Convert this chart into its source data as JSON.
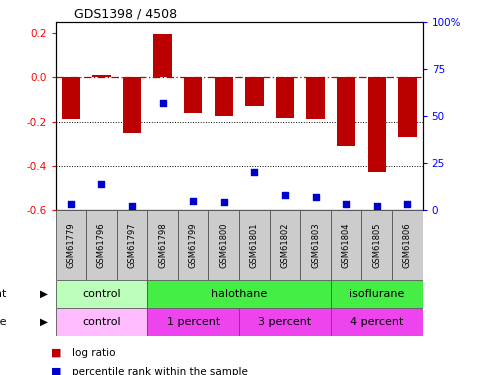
{
  "title": "GDS1398 / 4508",
  "samples": [
    "GSM61779",
    "GSM61796",
    "GSM61797",
    "GSM61798",
    "GSM61799",
    "GSM61800",
    "GSM61801",
    "GSM61802",
    "GSM61803",
    "GSM61804",
    "GSM61805",
    "GSM61806"
  ],
  "log_ratio": [
    -0.19,
    0.01,
    -0.25,
    0.195,
    -0.16,
    -0.175,
    -0.13,
    -0.185,
    -0.19,
    -0.31,
    -0.43,
    -0.27
  ],
  "percentile_rank": [
    3,
    14,
    2,
    57,
    5,
    4,
    20,
    8,
    7,
    3,
    2,
    3
  ],
  "bar_color": "#bb0000",
  "dot_color": "#0000cc",
  "ylim_left": [
    -0.6,
    0.25
  ],
  "ylim_right": [
    0,
    100
  ],
  "y_ticks_left": [
    -0.6,
    -0.4,
    -0.2,
    0.0,
    0.2
  ],
  "y_ticks_right": [
    0,
    25,
    50,
    75,
    100
  ],
  "y_ticks_right_labels": [
    "0",
    "25",
    "50",
    "75",
    "100%"
  ],
  "hline_y": 0.0,
  "dotted_lines": [
    -0.2,
    -0.4
  ],
  "agent_groups": [
    {
      "label": "control",
      "start": 0,
      "end": 3,
      "color": "#bbffbb"
    },
    {
      "label": "halothane",
      "start": 3,
      "end": 9,
      "color": "#44ee44"
    },
    {
      "label": "isoflurane",
      "start": 9,
      "end": 12,
      "color": "#44ee44"
    }
  ],
  "dose_groups": [
    {
      "label": "control",
      "start": 0,
      "end": 3,
      "color": "#ffbbff"
    },
    {
      "label": "1 percent",
      "start": 3,
      "end": 6,
      "color": "#ee44ee"
    },
    {
      "label": "3 percent",
      "start": 6,
      "end": 9,
      "color": "#ee44ee"
    },
    {
      "label": "4 percent",
      "start": 9,
      "end": 12,
      "color": "#ee44ee"
    }
  ],
  "legend_items": [
    {
      "label": "log ratio",
      "color": "#bb0000"
    },
    {
      "label": "percentile rank within the sample",
      "color": "#0000cc"
    }
  ],
  "fig_width": 4.83,
  "fig_height": 3.75,
  "dpi": 100
}
